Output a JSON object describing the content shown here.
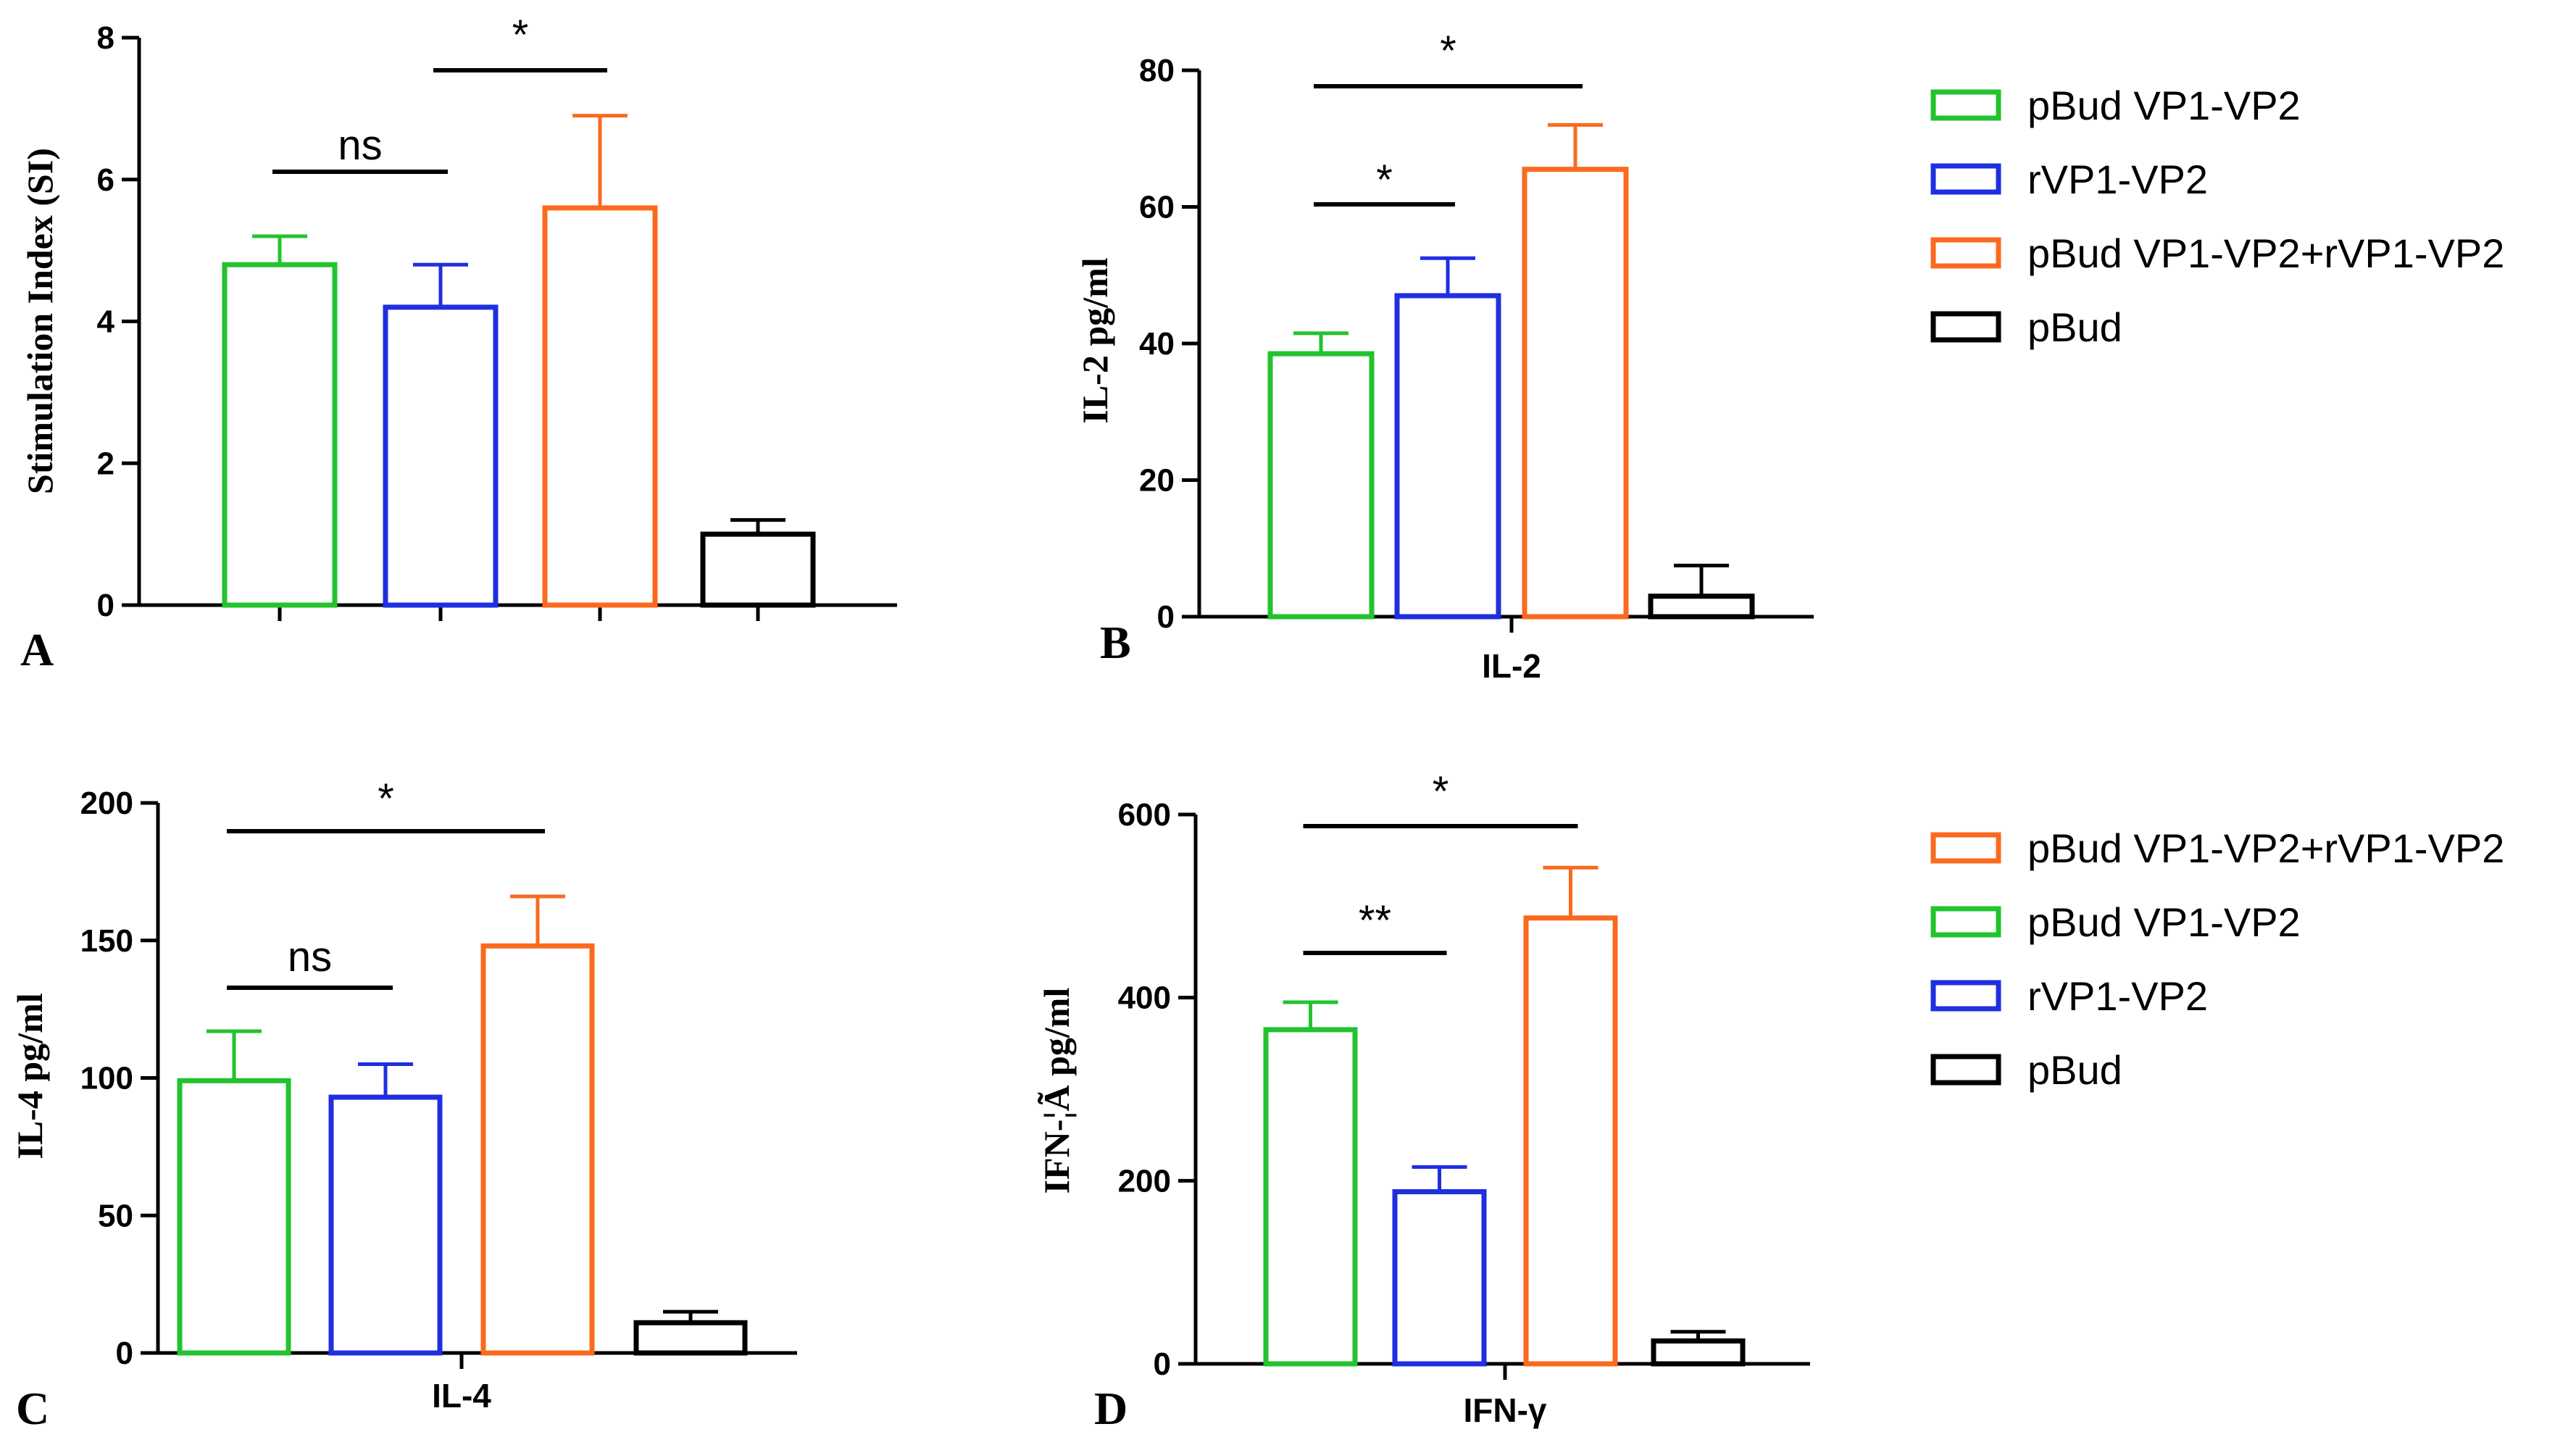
{
  "colors": {
    "pBud VP1-VP2": "#22c32e",
    "rVP1-VP2": "#1f2fe0",
    "pBud VP1-VP2+rVP1-VP2": "#fa6a1e",
    "pBud": "#000000"
  },
  "chart_data": [
    {
      "panel": "A",
      "type": "bar",
      "ylabel": "Stimulation Index (SI)",
      "xlabel": "",
      "ylim": [
        0,
        8
      ],
      "yticks": [
        "0",
        "2",
        "4",
        "6",
        "8"
      ],
      "series": [
        {
          "name": "pBud VP1-VP2",
          "value": 4.8,
          "error": 0.4
        },
        {
          "name": "rVP1-VP2",
          "value": 4.2,
          "error": 0.6
        },
        {
          "name": "pBud VP1-VP2+rVP1-VP2",
          "value": 5.6,
          "error": 1.3
        },
        {
          "name": "pBud",
          "value": 1.0,
          "error": 0.2
        }
      ],
      "significance": [
        {
          "from": 0,
          "to": 1,
          "label": "ns"
        },
        {
          "from": 1,
          "to": 2,
          "label": "*"
        }
      ]
    },
    {
      "panel": "B",
      "type": "bar",
      "ylabel": "IL-2 pg/ml",
      "xlabel": "IL-2",
      "ylim": [
        0,
        80
      ],
      "yticks": [
        "0",
        "20",
        "40",
        "60",
        "80"
      ],
      "series": [
        {
          "name": "pBud VP1-VP2",
          "value": 38.5,
          "error": 3
        },
        {
          "name": "rVP1-VP2",
          "value": 47,
          "error": 5.5
        },
        {
          "name": "pBud VP1-VP2+rVP1-VP2",
          "value": 65.5,
          "error": 6.5
        },
        {
          "name": "pBud",
          "value": 3,
          "error": 4.5
        }
      ],
      "significance": [
        {
          "from": 0,
          "to": 1,
          "label": "*"
        },
        {
          "from": 0,
          "to": 2,
          "label": "*"
        }
      ]
    },
    {
      "panel": "C",
      "type": "bar",
      "ylabel": "IL-4 pg/ml",
      "xlabel": "IL-4",
      "ylim": [
        0,
        200
      ],
      "yticks": [
        "0",
        "50",
        "100",
        "150",
        "200"
      ],
      "series": [
        {
          "name": "pBud VP1-VP2",
          "value": 99,
          "error": 18
        },
        {
          "name": "rVP1-VP2",
          "value": 93,
          "error": 12
        },
        {
          "name": "pBud VP1-VP2+rVP1-VP2",
          "value": 148,
          "error": 18
        },
        {
          "name": "pBud",
          "value": 11,
          "error": 4
        }
      ],
      "significance": [
        {
          "from": 0,
          "to": 1,
          "label": "ns"
        },
        {
          "from": 0,
          "to": 2,
          "label": "*"
        }
      ]
    },
    {
      "panel": "D",
      "type": "bar",
      "ylabel": "IFN-¦Ã pg/ml",
      "xlabel": "IFN-γ",
      "ylim": [
        0,
        600
      ],
      "yticks": [
        "0",
        "200",
        "400",
        "600"
      ],
      "series": [
        {
          "name": "pBud VP1-VP2",
          "value": 365,
          "error": 30
        },
        {
          "name": "rVP1-VP2",
          "value": 188,
          "error": 27
        },
        {
          "name": "pBud VP1-VP2+rVP1-VP2",
          "value": 487,
          "error": 55
        },
        {
          "name": "pBud",
          "value": 25,
          "error": 10
        }
      ],
      "significance": [
        {
          "from": 0,
          "to": 1,
          "label": "**"
        },
        {
          "from": 0,
          "to": 2,
          "label": "*"
        }
      ]
    }
  ],
  "legends": [
    {
      "entries": [
        "pBud VP1-VP2",
        "rVP1-VP2",
        "pBud VP1-VP2+rVP1-VP2",
        "pBud"
      ]
    },
    {
      "entries": [
        "pBud VP1-VP2+rVP1-VP2",
        "pBud VP1-VP2",
        "rVP1-VP2",
        "pBud"
      ]
    }
  ]
}
